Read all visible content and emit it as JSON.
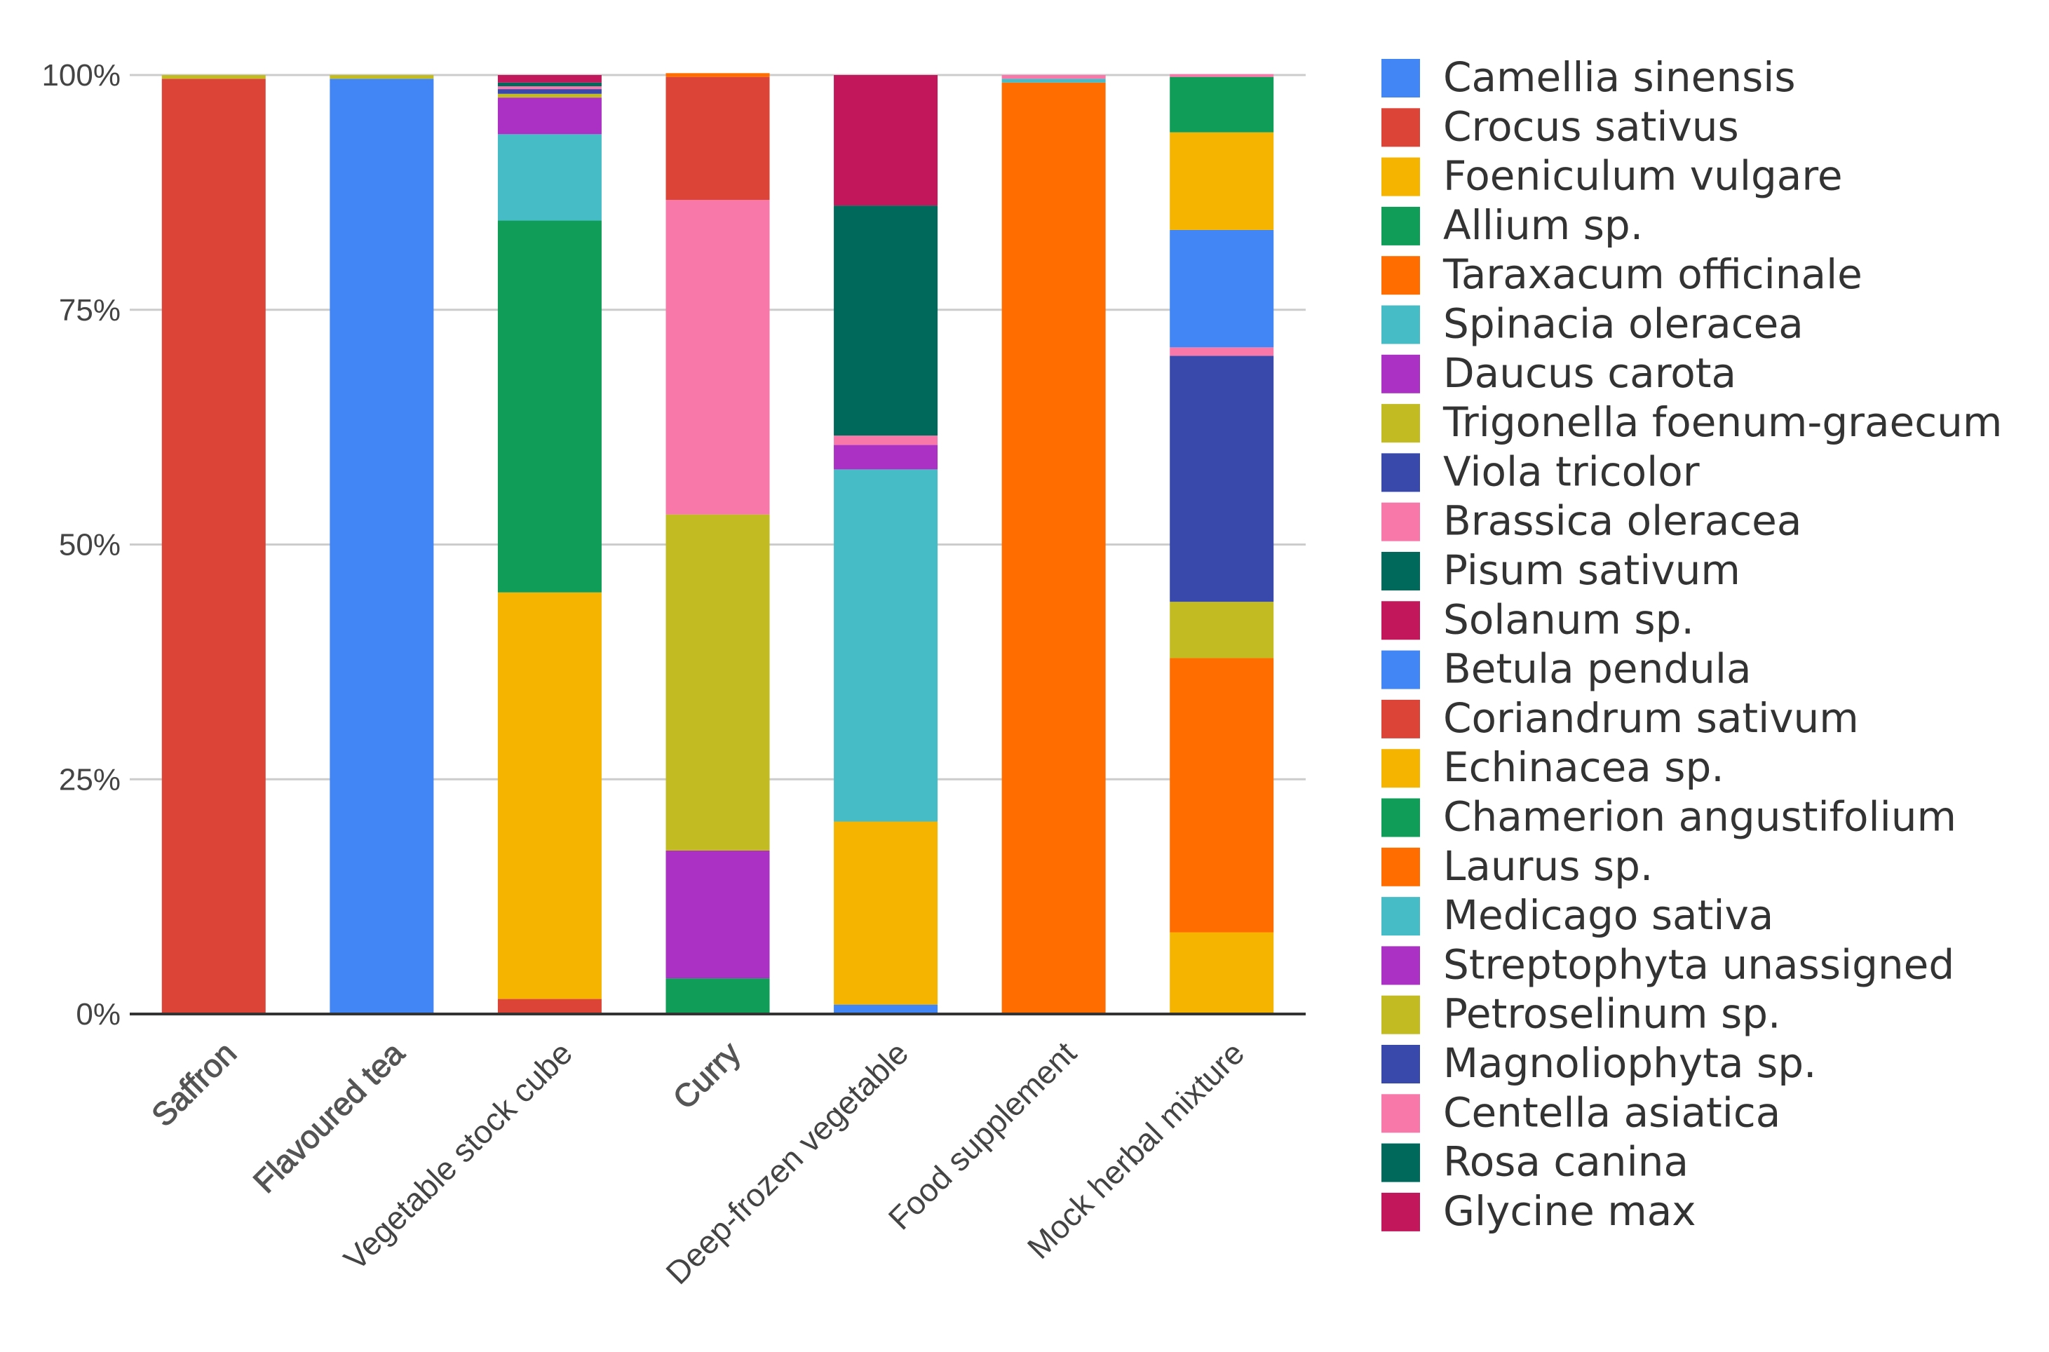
{
  "chart_data": {
    "type": "bar",
    "stacked": true,
    "percent": true,
    "title": "",
    "xlabel": "",
    "ylabel": "",
    "ylim": [
      0,
      100
    ],
    "y_ticks": [
      "0%",
      "25%",
      "50%",
      "75%",
      "100%"
    ],
    "legend_position": "right",
    "categories": [
      "Saffron",
      "Flavoured tea",
      "Vegetable stock cube",
      "Curry",
      "Deep-frozen vegetable",
      "Food supplement",
      "Mock herbal mixture"
    ],
    "series": [
      {
        "name": "Camellia sinensis",
        "color": "#4285F4",
        "values": [
          0,
          99.6,
          0,
          0,
          0,
          0,
          0
        ]
      },
      {
        "name": "Crocus sativus",
        "color": "#DB4437",
        "values": [
          99.6,
          0,
          0,
          0,
          0,
          0,
          0
        ]
      },
      {
        "name": "Foeniculum vulgare",
        "color": "#F4B400",
        "values": [
          0,
          0,
          0,
          0,
          0,
          0,
          8.7
        ]
      },
      {
        "name": "Allium sp.",
        "color": "#0F9D58",
        "values": [
          0,
          0,
          0,
          3.8,
          0,
          0,
          0
        ]
      },
      {
        "name": "Taraxacum officinale",
        "color": "#FF6D01",
        "values": [
          0,
          0,
          0,
          0,
          0,
          0,
          29.2
        ]
      },
      {
        "name": "Spinacia oleracea",
        "color": "#46BDC6",
        "values": [
          0,
          0,
          0,
          0,
          0,
          0,
          0
        ]
      },
      {
        "name": "Daucus carota",
        "color": "#AB30C4",
        "values": [
          0,
          0,
          0,
          13.6,
          0,
          0,
          0
        ]
      },
      {
        "name": "Trigonella foenum-graecum",
        "color": "#C2BC22",
        "values": [
          0.4,
          0.4,
          0,
          35.8,
          0,
          0,
          6.0
        ]
      },
      {
        "name": "Viola tricolor",
        "color": "#3949AB",
        "values": [
          0,
          0,
          0,
          0,
          0,
          0,
          26.2
        ]
      },
      {
        "name": "Brassica oleracea",
        "color": "#F878A9",
        "values": [
          0,
          0,
          0,
          33.5,
          0,
          0,
          0.9
        ]
      },
      {
        "name": "Pisum sativum",
        "color": "#00695C",
        "values": [
          0,
          0,
          0,
          0,
          0,
          0,
          0
        ]
      },
      {
        "name": "Solanum sp.",
        "color": "#C2185B",
        "values": [
          0,
          0,
          0,
          0,
          0,
          0,
          0
        ]
      },
      {
        "name": "Betula pendula",
        "color": "#4285F4",
        "values": [
          0,
          0,
          0,
          0,
          1.0,
          0,
          12.5
        ]
      },
      {
        "name": "Coriandrum sativum",
        "color": "#DB4437",
        "values": [
          0,
          0,
          1.6,
          13.1,
          0,
          0,
          0
        ]
      },
      {
        "name": "Echinacea sp.",
        "color": "#F4B400",
        "values": [
          0,
          0,
          43.3,
          0,
          19.5,
          0,
          10.4
        ]
      },
      {
        "name": "Chamerion angustifolium",
        "color": "#0F9D58",
        "values": [
          0,
          0,
          39.6,
          0,
          0,
          0,
          5.9
        ]
      },
      {
        "name": "Laurus sp.",
        "color": "#FF6D01",
        "values": [
          0,
          0,
          0,
          0.4,
          0,
          99.2,
          0
        ]
      },
      {
        "name": "Medicago sativa",
        "color": "#46BDC6",
        "values": [
          0,
          0,
          9.2,
          0,
          37.5,
          0.4,
          0
        ]
      },
      {
        "name": "Streptophyta unassigned",
        "color": "#AB30C4",
        "values": [
          0,
          0,
          3.9,
          0,
          2.6,
          0,
          0
        ]
      },
      {
        "name": "Petroselinum sp.",
        "color": "#C2BC22",
        "values": [
          0,
          0,
          0.4,
          0,
          0,
          0,
          0
        ]
      },
      {
        "name": "Magnoliophyta sp.",
        "color": "#3949AB",
        "values": [
          0,
          0,
          0.5,
          0,
          0,
          0,
          0
        ]
      },
      {
        "name": "Centella asiatica",
        "color": "#F878A9",
        "values": [
          0,
          0,
          0.3,
          0,
          1.0,
          0.4,
          0.3
        ]
      },
      {
        "name": "Rosa canina",
        "color": "#00695C",
        "values": [
          0,
          0,
          0.4,
          0,
          24.5,
          0,
          0
        ]
      },
      {
        "name": "Glycine max",
        "color": "#C2185B",
        "values": [
          0,
          0,
          0.8,
          0,
          13.9,
          0,
          0
        ]
      }
    ],
    "bold_categories": [
      "Saffron",
      "Flavoured tea",
      "Curry"
    ]
  }
}
